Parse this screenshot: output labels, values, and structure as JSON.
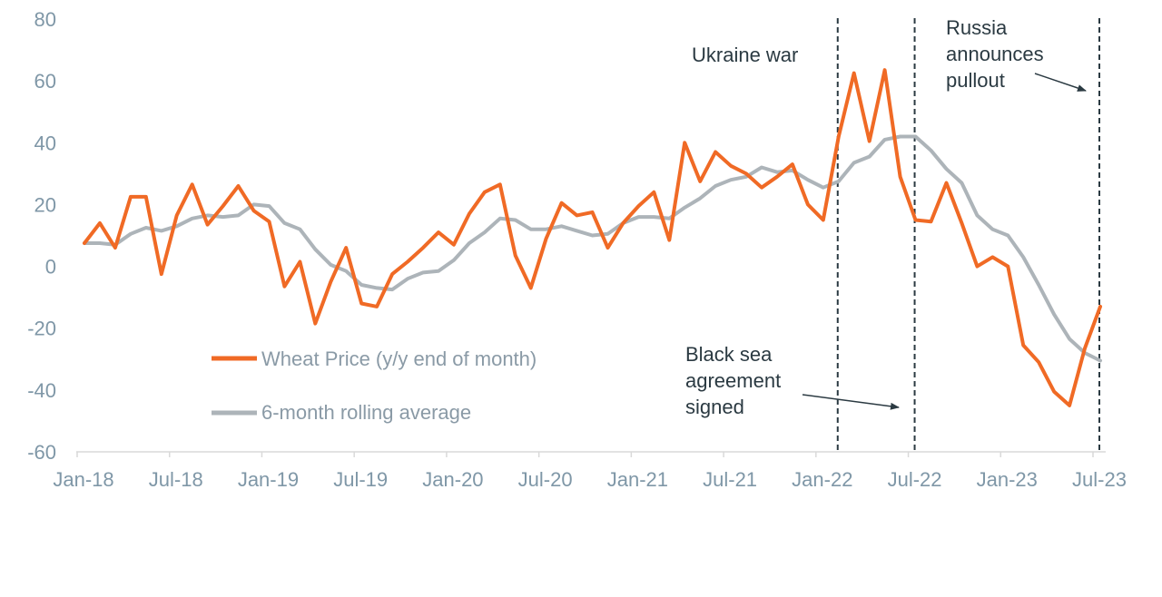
{
  "chart_data": {
    "type": "line",
    "title": "",
    "xlabel": "",
    "ylabel": "",
    "ylim": [
      -60,
      80
    ],
    "yticks": [
      80,
      60,
      40,
      20,
      0,
      -20,
      -40,
      -60
    ],
    "x_labels": [
      "Jan-18",
      "Jul-18",
      "Jan-19",
      "Jul-19",
      "Jan-20",
      "Jul-20",
      "Jan-21",
      "Jul-21",
      "Jan-22",
      "Jul-22",
      "Jan-23",
      "Jul-23"
    ],
    "x": [
      "Jan-18",
      "Feb-18",
      "Mar-18",
      "Apr-18",
      "May-18",
      "Jun-18",
      "Jul-18",
      "Aug-18",
      "Sep-18",
      "Oct-18",
      "Nov-18",
      "Dec-18",
      "Jan-19",
      "Feb-19",
      "Mar-19",
      "Apr-19",
      "May-19",
      "Jun-19",
      "Jul-19",
      "Aug-19",
      "Sep-19",
      "Oct-19",
      "Nov-19",
      "Dec-19",
      "Jan-20",
      "Feb-20",
      "Mar-20",
      "Apr-20",
      "May-20",
      "Jun-20",
      "Jul-20",
      "Aug-20",
      "Sep-20",
      "Oct-20",
      "Nov-20",
      "Dec-20",
      "Jan-21",
      "Feb-21",
      "Mar-21",
      "Apr-21",
      "May-21",
      "Jun-21",
      "Jul-21",
      "Aug-21",
      "Sep-21",
      "Oct-21",
      "Nov-21",
      "Dec-21",
      "Jan-22",
      "Feb-22",
      "Mar-22",
      "Apr-22",
      "May-22",
      "Jun-22",
      "Jul-22",
      "Aug-22",
      "Sep-22",
      "Oct-22",
      "Nov-22",
      "Dec-22",
      "Jan-23",
      "Feb-23",
      "Mar-23",
      "Apr-23",
      "May-23",
      "Jun-23",
      "Jul-23"
    ],
    "series": [
      {
        "name": "Wheat Price (y/y end of month)",
        "color": "#f06a25",
        "values": [
          7.5,
          14,
          6,
          22.5,
          22.5,
          -2.5,
          16.5,
          26.5,
          13.5,
          19.5,
          26,
          18,
          14.5,
          -6.5,
          1.5,
          -18.5,
          -5,
          6,
          -12,
          -13,
          -2.5,
          1.5,
          6,
          11,
          7,
          17,
          24,
          26.5,
          3.5,
          -7,
          9,
          20.5,
          16.5,
          17.5,
          6,
          14,
          19.5,
          24,
          8.5,
          40,
          27.5,
          37,
          32.5,
          30,
          25.5,
          29,
          33,
          20,
          15,
          42,
          62.5,
          40.5,
          63.5,
          29,
          15,
          14.5,
          27,
          14,
          0,
          3,
          0,
          -25.5,
          -31,
          -40.5,
          -45,
          -26.5,
          -13
        ]
      },
      {
        "name": "6-month rolling average",
        "color": "#adb4b9",
        "values": [
          7.5,
          7.5,
          7,
          10.5,
          12.5,
          11.5,
          13,
          15.5,
          16.5,
          16,
          16.5,
          20,
          19.5,
          14,
          12,
          5.5,
          0.5,
          -1.5,
          -6,
          -7,
          -7.5,
          -4,
          -2,
          -1.5,
          2,
          7.5,
          11,
          15.5,
          15,
          12,
          12,
          13,
          11.5,
          10,
          10.5,
          14,
          16,
          16,
          15.5,
          19,
          22,
          26,
          28,
          29,
          32,
          30.5,
          31,
          28,
          25.5,
          27.5,
          33.5,
          35.5,
          41,
          42,
          42,
          37.5,
          31.5,
          27,
          16.5,
          12,
          10,
          3,
          -6,
          -15.5,
          -23.5,
          -28,
          -30.5
        ]
      }
    ],
    "annotations": [
      {
        "date": "Feb-22",
        "text": [
          "Ukraine war"
        ]
      },
      {
        "date": "Jul-22",
        "text": [
          "Black sea",
          "agreement",
          "signed"
        ]
      },
      {
        "date": "Jul-23",
        "text": [
          "Russia",
          "announces",
          "pullout"
        ]
      }
    ],
    "grid": false,
    "legend_position": "lower-left"
  }
}
